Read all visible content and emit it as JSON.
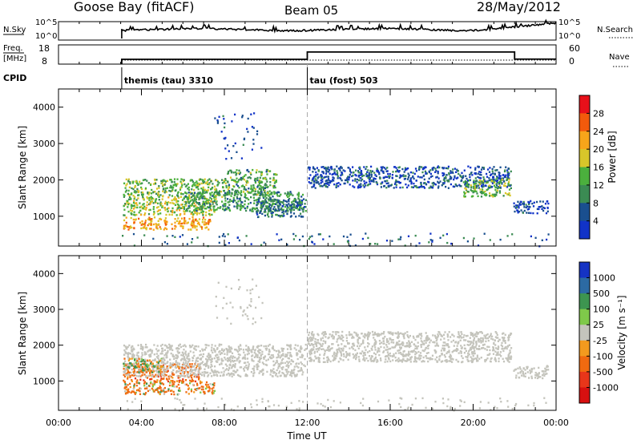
{
  "header": {
    "station": "Goose Bay (fitACF)",
    "beam": "Beam 05",
    "date": "28/May/2012"
  },
  "nsky_panel": {
    "left_label": "N.Sky",
    "left_ticks": [
      "10^5",
      "10^0"
    ],
    "right_ticks": [
      "10^5",
      "10^0"
    ],
    "right_label": "N.Search"
  },
  "freq_panel": {
    "left_label_line1": "Freq.",
    "left_label_line2": "[MHz]",
    "left_ticks": [
      "18",
      "8"
    ],
    "right_ticks": [
      "60",
      "0"
    ],
    "right_label": "Nave"
  },
  "cpid": {
    "label": "CPID",
    "segments": [
      {
        "start_hour": 3.05,
        "text": "themis (tau) 3310"
      },
      {
        "start_hour": 12.0,
        "text": "tau (fost) 503"
      }
    ]
  },
  "power_panel": {
    "ylabel": "Slant Range [km]",
    "colorbar_label": "Power [dB]",
    "colorbar_ticks": [
      "28",
      "24",
      "20",
      "16",
      "12",
      "8",
      "4"
    ],
    "colorbar_colors": [
      "#e8101a",
      "#f25a0c",
      "#f7a51a",
      "#d8c62a",
      "#4bb03d",
      "#3b8b53",
      "#1a4f8f",
      "#1133c8"
    ]
  },
  "velocity_panel": {
    "ylabel": "Slant Range [km]",
    "colorbar_label": "Velocity [m s⁻¹]",
    "colorbar_ticks": [
      "1000",
      "500",
      "100",
      "25",
      "-25",
      "-100",
      "-500",
      "-1000"
    ],
    "colorbar_colors": [
      "#1533c4",
      "#2c6aa3",
      "#3d9550",
      "#7fc94a",
      "#c4c4bc",
      "#f39a1e",
      "#f06a10",
      "#e8361a",
      "#d81010"
    ]
  },
  "x_axis": {
    "label": "Time UT",
    "ticks": [
      "00:00",
      "04:00",
      "08:00",
      "12:00",
      "16:00",
      "20:00",
      "00:00"
    ]
  },
  "chart_data": {
    "type": "heatmap",
    "title": "Goose Bay (fitACF)   Beam 05   28/May/2012",
    "xlabel": "Time UT",
    "ylabel": "Slant Range [km]",
    "xlim_hours": [
      0,
      24
    ],
    "ylim_km": [
      180,
      4500
    ],
    "y_ticks_km": [
      1000,
      2000,
      3000,
      4000
    ],
    "mode_change_hour": 12,
    "data_start_hour": 3.05,
    "frequency_mhz": [
      {
        "from_hour": 3.05,
        "to_hour": 12.0,
        "value": 10.5
      },
      {
        "from_hour": 12.0,
        "to_hour": 22.0,
        "value": 14.3
      },
      {
        "from_hour": 22.0,
        "to_hour": 24.0,
        "value": 10.6
      }
    ],
    "power_regions": [
      {
        "t0": 3.1,
        "t1": 7.3,
        "r0": 650,
        "r1": 1000,
        "db": 22
      },
      {
        "t0": 3.1,
        "t1": 7.6,
        "r0": 1050,
        "r1": 1550,
        "db": 16
      },
      {
        "t0": 3.1,
        "t1": 8.2,
        "r0": 1550,
        "r1": 2050,
        "db": 14
      },
      {
        "t0": 6.0,
        "t1": 11.8,
        "r0": 1150,
        "r1": 1700,
        "db": 11
      },
      {
        "t0": 8.0,
        "t1": 10.5,
        "r0": 1600,
        "r1": 2300,
        "db": 12
      },
      {
        "t0": 9.5,
        "t1": 11.9,
        "r0": 1000,
        "r1": 1500,
        "db": 8
      },
      {
        "t0": 12.0,
        "t1": 21.8,
        "r0": 1800,
        "r1": 2400,
        "db": 5
      },
      {
        "t0": 19.5,
        "t1": 21.8,
        "r0": 1550,
        "r1": 2050,
        "db": 14
      },
      {
        "t0": 21.9,
        "t1": 23.6,
        "r0": 1100,
        "r1": 1450,
        "db": 4
      },
      {
        "t0": 7.5,
        "t1": 9.8,
        "r0": 2600,
        "r1": 3900,
        "db": 4
      },
      {
        "t0": 3.0,
        "t1": 23.9,
        "r0": 200,
        "r1": 550,
        "db": 6
      }
    ],
    "velocity_regions": [
      {
        "t0": 3.1,
        "t1": 6.8,
        "r0": 1000,
        "r1": 1500,
        "ms": -300
      },
      {
        "t0": 3.1,
        "t1": 7.5,
        "r0": 650,
        "r1": 1000,
        "ms": -150
      },
      {
        "t0": 3.1,
        "t1": 11.9,
        "r0": 1150,
        "r1": 2050,
        "ms": 0
      },
      {
        "t0": 3.1,
        "t1": 5.0,
        "r0": 1250,
        "r1": 1650,
        "ms": 80
      },
      {
        "t0": 12.0,
        "t1": 21.8,
        "r0": 1550,
        "r1": 2400,
        "ms": 0
      },
      {
        "t0": 21.9,
        "t1": 23.6,
        "r0": 1100,
        "r1": 1450,
        "ms": 0
      },
      {
        "t0": 7.5,
        "t1": 9.8,
        "r0": 2600,
        "r1": 3900,
        "ms": 0
      },
      {
        "t0": 3.0,
        "t1": 23.9,
        "r0": 200,
        "r1": 550,
        "ms": 0
      }
    ]
  }
}
